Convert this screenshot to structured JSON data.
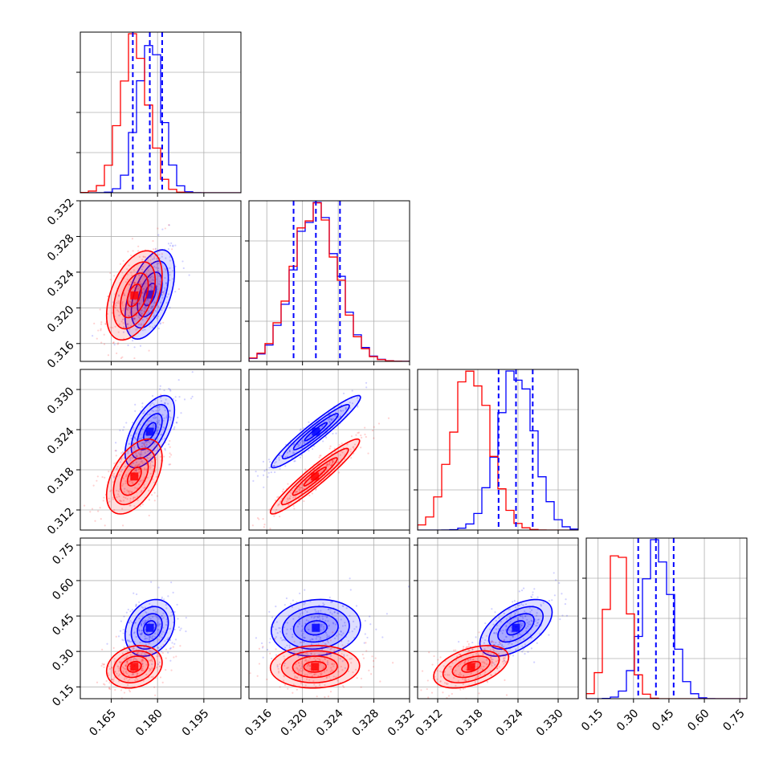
{
  "chart_data": {
    "type": "corner",
    "colors": {
      "series_a": "#0000ff",
      "series_b": "#ff0000",
      "axis": "#000000",
      "grid": "#b0b0b0",
      "quantile_line": "#0000ff"
    },
    "series": [
      {
        "name": "blue",
        "color": "#0000ff",
        "mean": [
          0.1775,
          0.3215,
          0.3237,
          0.4
        ],
        "std": [
          0.004,
          0.0025,
          0.0027,
          0.06
        ]
      },
      {
        "name": "red",
        "color": "#ff0000",
        "mean": [
          0.1725,
          0.3214,
          0.317,
          0.235
        ],
        "std": [
          0.0045,
          0.0025,
          0.0028,
          0.045
        ]
      }
    ],
    "correlations": {
      "blue": {
        "1-0": 0.5,
        "2-0": 0.6,
        "2-1": 0.95,
        "3-0": 0.25,
        "3-1": 0.1,
        "3-2": 0.55
      },
      "red": {
        "1-0": 0.45,
        "2-0": 0.5,
        "2-1": 0.95,
        "3-0": 0.2,
        "3-1": 0.05,
        "3-2": 0.45
      }
    },
    "parameters": [
      {
        "range": [
          0.155,
          0.207
        ],
        "ticks": [
          0.165,
          0.18,
          0.195
        ],
        "tick_labels": [
          "0.165",
          "0.180",
          "0.195"
        ],
        "quantiles": [
          0.172,
          0.1775,
          0.1815
        ]
      },
      {
        "range": [
          0.314,
          0.332
        ],
        "ticks": [
          0.316,
          0.32,
          0.324,
          0.328,
          0.332
        ],
        "tick_labels": [
          "0.316",
          "0.320",
          "0.324",
          "0.328",
          "0.332"
        ],
        "quantiles": [
          0.319,
          0.3215,
          0.3242
        ]
      },
      {
        "range": [
          0.309,
          0.333
        ],
        "ticks": [
          0.312,
          0.318,
          0.324,
          0.33
        ],
        "tick_labels": [
          "0.312",
          "0.318",
          "0.324",
          "0.330"
        ],
        "quantiles": [
          0.3211,
          0.3237,
          0.3262
        ]
      },
      {
        "range": [
          0.1,
          0.78
        ],
        "ticks": [
          0.15,
          0.3,
          0.45,
          0.6,
          0.75
        ],
        "tick_labels": [
          "0.15",
          "0.30",
          "0.45",
          "0.60",
          "0.75"
        ],
        "quantiles": [
          0.32,
          0.395,
          0.47
        ]
      }
    ],
    "x_tick_labels_shown": {
      "col0": [
        "0.165",
        "0.180",
        "0.195"
      ],
      "col1": [
        "0.316",
        "0.320",
        "0.324",
        "0.328",
        "0.332"
      ],
      "col2": [
        "0.312",
        "0.318",
        "0.324",
        "0.330"
      ],
      "col3": [
        "0.15",
        "0.30",
        "0.45",
        "0.60",
        "0.75"
      ]
    },
    "y_tick_labels_shown": {
      "row1": [
        "0.316",
        "0.320",
        "0.324",
        "0.328",
        "0.332"
      ],
      "row2": [
        "0.312",
        "0.318",
        "0.324",
        "0.330"
      ],
      "row3": [
        "0.15",
        "0.30",
        "0.45",
        "0.60",
        "0.75"
      ]
    },
    "grid": true,
    "contour_levels_sigma": [
      0.5,
      1.0,
      1.5,
      2.0
    ],
    "title": "",
    "xlabel": "",
    "ylabel": ""
  }
}
